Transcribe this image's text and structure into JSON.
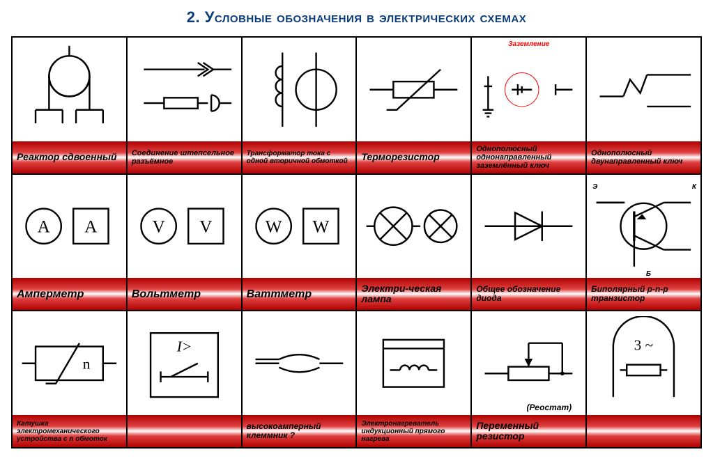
{
  "title": "2. Условные обозначения в электрических схемах",
  "title_color": "#0b3d7a",
  "title_fontsize": 22,
  "label_bg": "linear-gradient(to bottom, #b00000 0%, #e04040 35%, #ffffff 50%, #e04040 65%, #b00000 100%)",
  "label_bg_flat": "#c01818",
  "stroke": "#000000",
  "stroke_width": 2.5,
  "grid": {
    "cols": 6,
    "rows": 3
  },
  "cells": [
    {
      "label": "Реактор сдвоенный",
      "label_fontsize": 14,
      "symbol": "reactor"
    },
    {
      "label": "Соединение штепсельное разъёмное",
      "label_fontsize": 11,
      "symbol": "plug"
    },
    {
      "label": "Трансформатор тока с одной вторичной обмоткой",
      "label_fontsize": 10,
      "symbol": "ct"
    },
    {
      "label": "Терморезистор",
      "label_fontsize": 14,
      "symbol": "thermistor"
    },
    {
      "label": "Однополюсный однонаправленный заземлённый ключ",
      "label_fontsize": 11,
      "symbol": "switch-ground",
      "annotation": "Заземление",
      "red_circle": true
    },
    {
      "label": "Однополюсный двунаправленный ключ",
      "label_fontsize": 11,
      "symbol": "switch-2way"
    },
    {
      "label": "Амперметр",
      "label_fontsize": 16,
      "symbol": "ammeter",
      "letter": "A"
    },
    {
      "label": "Вольтметр",
      "label_fontsize": 16,
      "symbol": "voltmeter",
      "letter": "V"
    },
    {
      "label": "Ваттметр",
      "label_fontsize": 16,
      "symbol": "wattmeter",
      "letter": "W"
    },
    {
      "label": "Электри-ческая лампа",
      "label_fontsize": 14,
      "symbol": "lamp"
    },
    {
      "label": "Общее обозначение диода",
      "label_fontsize": 12,
      "symbol": "diode"
    },
    {
      "label": "Биполярный p-n-p транзистор",
      "label_fontsize": 12,
      "symbol": "pnp",
      "terminals": {
        "e": "Э",
        "c": "К",
        "b": "Б"
      }
    },
    {
      "label": "Катушка электромеханического устройства с n обмоток",
      "label_fontsize": 10,
      "symbol": "coil-n",
      "letter": "n"
    },
    {
      "label": "",
      "label_fontsize": 12,
      "symbol": "relay-i",
      "letter": "I>"
    },
    {
      "label": "высокоамперный клеммник ?",
      "label_fontsize": 12,
      "symbol": "terminal"
    },
    {
      "label": "Электронагреватель индукционный прямого нагрева",
      "label_fontsize": 10,
      "symbol": "heater-ind"
    },
    {
      "label": "Переменный резистор",
      "label_fontsize": 14,
      "symbol": "var-res",
      "sublabel": "(Реостат)"
    },
    {
      "label": "",
      "label_fontsize": 12,
      "symbol": "motor-3ph",
      "letter": "3 ~"
    }
  ]
}
